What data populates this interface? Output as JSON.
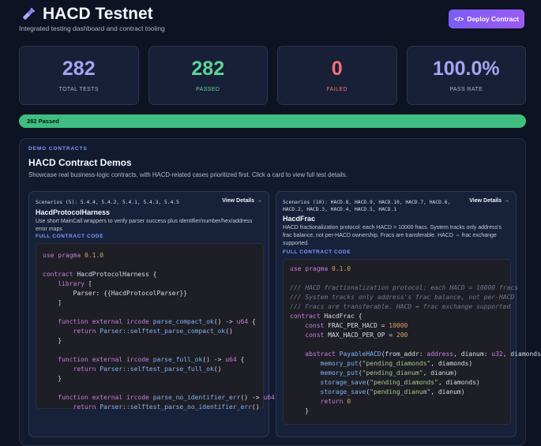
{
  "header": {
    "title": "HACD Testnet",
    "subtitle": "Integrated testing dashboard and contract tooling",
    "deploy_label": "Deploy Contract"
  },
  "stats": [
    {
      "value": "282",
      "label": "TOTAL TESTS",
      "color": "#a3a5f2"
    },
    {
      "value": "282",
      "label": "PASSED",
      "color": "#5ed49a"
    },
    {
      "value": "0",
      "label": "FAILED",
      "color": "#f47171"
    },
    {
      "value": "100.0%",
      "label": "PASS RATE",
      "color": "#a3a5f2"
    }
  ],
  "progress": {
    "label": "282 Passed",
    "fraction": 1.0
  },
  "demos": {
    "eyebrow": "DEMO CONTRACTS",
    "title": "HACD Contract Demos",
    "description": "Showcase real business-logic contracts, with HACD-related cases prioritized first. Click a card to view full test details.",
    "cards": [
      {
        "scenarios": "Scenarios (5): 5.4.4, 5.4.2, 5.4.1, 5.4.3, 5.4.5",
        "view": "View Details",
        "name": "HacdProtocolHarness",
        "description": "Use short MainCall wrappers to verify parser success plus identifier/number/hex/address error maps",
        "code_label": "FULL CONTRACT CODE"
      },
      {
        "scenarios": "Scenarios (10): HACD.8, HACD.9, HACD.10, HACD.7, HACD.6, HACD.2, HACD.3, HACD.4, HACD.5, HACD.1",
        "view": "View Details",
        "name": "HacdFrac",
        "description": "HACD fractionalization protocol: each HACD = 10000 fracs. System tracks only address's frac balance, not per-HACD ownership. Fracs are transferable. HACD ⇔ frac exchange supported.",
        "code_label": "FULL CONTRACT CODE"
      }
    ]
  },
  "code_left": [
    "use pragma 0.1.0",
    "",
    "contract HacdProtocolHarness {",
    "    library [",
    "        Parser: {{HacdProtocolParser}}",
    "    ]",
    "",
    "    function external ircode parse_compact_ok() -> u64 {",
    "        return Parser::selftest_parse_compact_ok()",
    "    }",
    "",
    "    function external ircode parse_full_ok() -> u64 {",
    "        return Parser::selftest_parse_full_ok()",
    "    }",
    "",
    "    function external ircode parse_no_identifier_err() -> u64 {",
    "        return Parser::selftest_parse_no_identifier_err()"
  ],
  "code_right": [
    "use pragma 0.1.0",
    "",
    "/// HACD fractionalization protocol: each HACD = 10000 fracs",
    "/// System tracks only address's frac balance, not per-HACD",
    "/// Fracs are transferable. HACD ↔ frac exchange supported",
    "contract HacdFrac {",
    "    const FRAC_PER_HACD = 10000",
    "    const MAX_HACD_PER_OP = 200",
    "",
    "    abstract PayableHACD(from_addr: address, dianum: u32, diamonds",
    "        memory_put(\"pending_diamonds\", diamonds)",
    "        memory_put(\"pending_dianum\", dianum)",
    "        storage_save(\"pending_diamonds\", diamonds)",
    "        storage_save(\"pending_dianum\", dianum)",
    "        return 0",
    "    }"
  ]
}
